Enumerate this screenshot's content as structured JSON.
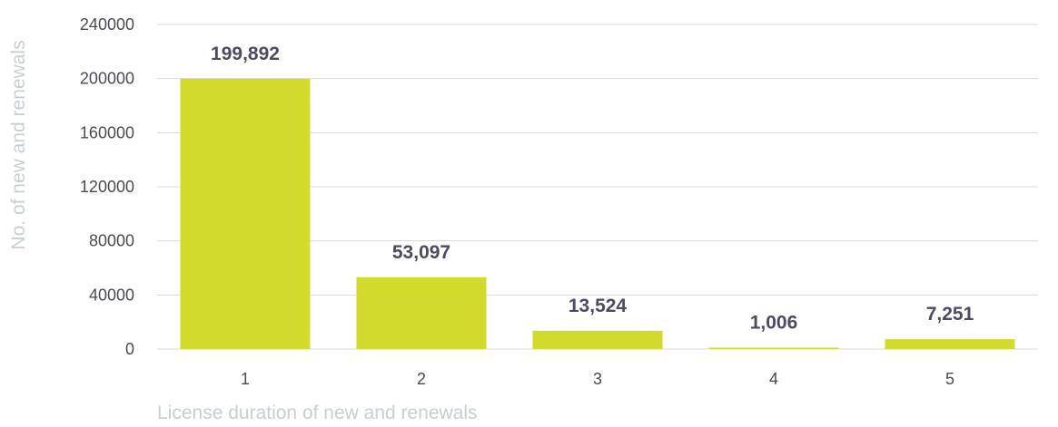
{
  "chart_data": {
    "type": "bar",
    "categories": [
      "1",
      "2",
      "3",
      "4",
      "5"
    ],
    "values": [
      199892,
      53097,
      13524,
      1006,
      7251
    ],
    "data_labels": [
      "199,892",
      "53,097",
      "13,524",
      "1,006",
      "7,251"
    ],
    "title": "",
    "xlabel": "License duration of new and renewals",
    "ylabel": "No. of new and renewals",
    "ylim": [
      0,
      240000
    ],
    "yticks": [
      0,
      40000,
      80000,
      120000,
      160000,
      200000,
      240000
    ],
    "ytick_labels": [
      "0",
      "40000",
      "80000",
      "120000",
      "160000",
      "200000",
      "240000"
    ],
    "grid": true,
    "legend": "none",
    "colors": {
      "bar": "#d2da2b",
      "data_label": "#4d4a63",
      "axis_title": "#c8ced6",
      "tick_label": "#4a4a5a",
      "grid": "#d9d9d9"
    }
  }
}
